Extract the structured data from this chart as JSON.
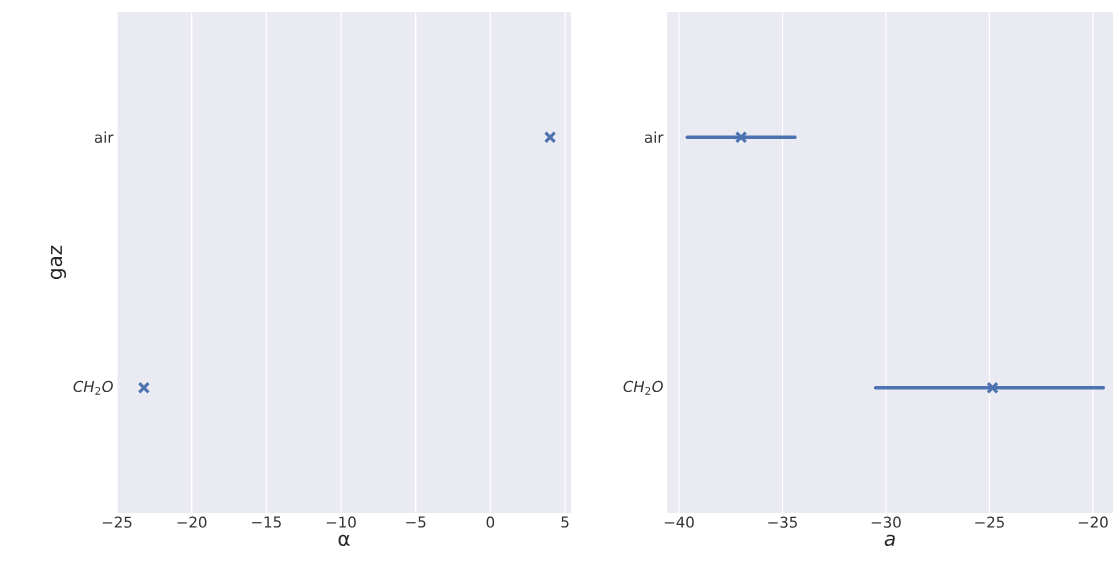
{
  "chart_data": [
    {
      "type": "scatter",
      "orientation": "horizontal",
      "categories": [
        "air",
        "*CH*$_{2}$*O*"
      ],
      "values": [
        4.0,
        -23.2
      ],
      "color": "#4c72b0",
      "marker": "cross",
      "xlabel": "α",
      "ylabel": "gaz",
      "xlim": [
        -25,
        5.4
      ],
      "xticks": [
        {
          "value": -25,
          "label": "−25"
        },
        {
          "value": -20,
          "label": "−20"
        },
        {
          "value": -15,
          "label": "−15"
        },
        {
          "value": -10,
          "label": "−10"
        },
        {
          "value": -5,
          "label": "−5"
        },
        0,
        5
      ],
      "grid": "x"
    },
    {
      "type": "scatter",
      "orientation": "horizontal",
      "categories": [
        "air",
        "*CH*$_{2}$*O*"
      ],
      "values": [
        -37.0,
        -24.85
      ],
      "errors": [
        [
          -39.6,
          -34.4
        ],
        [
          -30.5,
          -19.5
        ]
      ],
      "color": "#4c72b0",
      "marker": "cross",
      "xlabel": "*a*",
      "xlim": [
        -40.58,
        -19.03
      ],
      "xticks": [
        {
          "value": -40,
          "label": "−40"
        },
        {
          "value": -35,
          "label": "−35"
        },
        {
          "value": -30,
          "label": "−30"
        },
        {
          "value": -25,
          "label": "−25"
        },
        {
          "value": -20,
          "label": "−20"
        }
      ],
      "grid": "x"
    }
  ]
}
